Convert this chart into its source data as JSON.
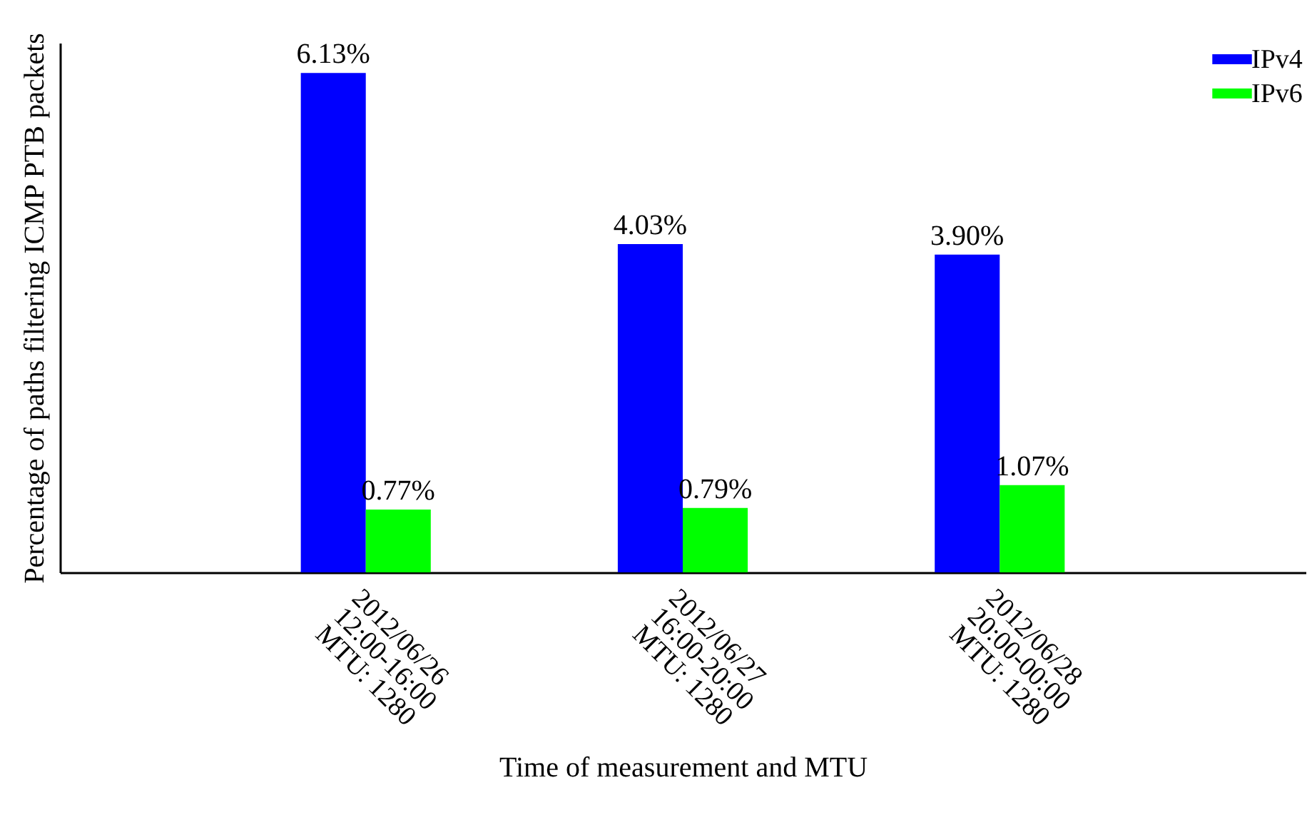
{
  "chart_data": {
    "type": "bar",
    "xlabel": "Time of measurement and MTU",
    "ylabel": "Percentage of paths filtering ICMP PTB packets",
    "categories": [
      "2012/06/26\n12:00-16:00\nMTU: 1280",
      "2012/06/27\n16:00-20:00\nMTU: 1280",
      "2012/06/28\n20:00-00:00\nMTU: 1280"
    ],
    "series": [
      {
        "name": "IPv4",
        "color": "#0000ff",
        "values": [
          6.13,
          4.03,
          3.9
        ],
        "value_labels": [
          "6.13%",
          "4.03%",
          "3.90%"
        ]
      },
      {
        "name": "IPv6",
        "color": "#00ff00",
        "values": [
          0.77,
          0.79,
          1.07
        ],
        "value_labels": [
          "0.77%",
          "0.79%",
          "1.07%"
        ]
      }
    ],
    "legend": "top right",
    "grid": false,
    "tick_labels": "x"
  }
}
